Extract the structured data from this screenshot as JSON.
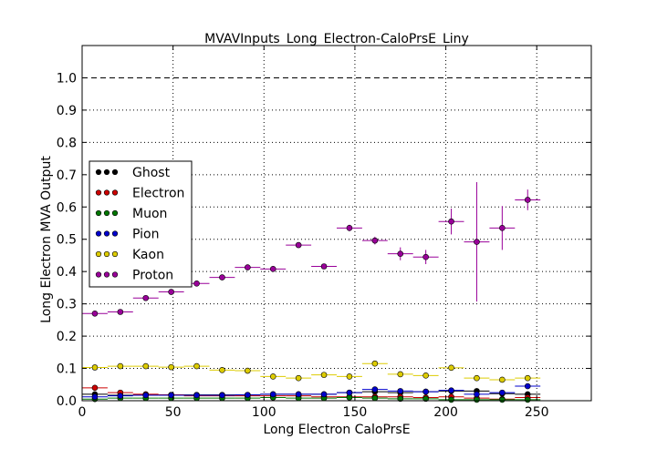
{
  "chart_data": {
    "type": "scatter",
    "title": "MVAVInputs_Long_Electron-CaloPrsE_Liny",
    "xlabel": "Long Electron CaloPrsE",
    "ylabel": "Long Electron MVA Output",
    "xlim": [
      0,
      280
    ],
    "ylim": [
      0,
      1.1
    ],
    "xticks": [
      0,
      50,
      100,
      150,
      200,
      250
    ],
    "xtick_labels": [
      "0",
      "50",
      "100",
      "150",
      "200",
      "250"
    ],
    "yticks": [
      0.0,
      0.1,
      0.2,
      0.3,
      0.4,
      0.5,
      0.6,
      0.7,
      0.8,
      0.9,
      1.0
    ],
    "ytick_labels": [
      "0.0",
      "0.1",
      "0.2",
      "0.3",
      "0.4",
      "0.5",
      "0.6",
      "0.7",
      "0.8",
      "0.9",
      "1.0"
    ],
    "grid": true,
    "reference_line": 1.0,
    "legend_position": "center-left",
    "bin_half_width": 7,
    "x": [
      7,
      21,
      35,
      49,
      63,
      77,
      91,
      105,
      119,
      133,
      147,
      161,
      175,
      189,
      203,
      217,
      231,
      245
    ],
    "series": [
      {
        "name": "Ghost",
        "color": "#000000",
        "values": [
          0.02,
          0.017,
          0.018,
          0.018,
          0.018,
          0.018,
          0.018,
          0.02,
          0.02,
          0.02,
          0.025,
          0.028,
          0.025,
          0.028,
          0.03,
          0.03,
          0.022,
          0.02
        ],
        "errors": [
          0.002,
          0.002,
          0.002,
          0.002,
          0.002,
          0.002,
          0.002,
          0.002,
          0.002,
          0.002,
          0.003,
          0.003,
          0.003,
          0.003,
          0.004,
          0.004,
          0.004,
          0.004
        ]
      },
      {
        "name": "Electron",
        "color": "#cc0000",
        "values": [
          0.04,
          0.025,
          0.02,
          0.018,
          0.015,
          0.015,
          0.015,
          0.015,
          0.015,
          0.012,
          0.012,
          0.012,
          0.012,
          0.01,
          0.012,
          0.008,
          0.005,
          0.01
        ],
        "errors": [
          0.002,
          0.002,
          0.002,
          0.002,
          0.002,
          0.002,
          0.002,
          0.002,
          0.002,
          0.002,
          0.002,
          0.002,
          0.002,
          0.002,
          0.002,
          0.002,
          0.002,
          0.002
        ]
      },
      {
        "name": "Muon",
        "color": "#007700",
        "values": [
          0.005,
          0.008,
          0.008,
          0.008,
          0.008,
          0.008,
          0.008,
          0.01,
          0.008,
          0.008,
          0.01,
          0.008,
          0.006,
          0.006,
          0.003,
          0.003,
          0.003,
          0.003
        ],
        "errors": [
          0.002,
          0.002,
          0.002,
          0.002,
          0.002,
          0.002,
          0.002,
          0.002,
          0.002,
          0.002,
          0.003,
          0.003,
          0.003,
          0.003,
          0.003,
          0.003,
          0.003,
          0.003
        ]
      },
      {
        "name": "Pion",
        "color": "#0000cc",
        "values": [
          0.012,
          0.015,
          0.017,
          0.017,
          0.017,
          0.017,
          0.018,
          0.02,
          0.02,
          0.02,
          0.025,
          0.035,
          0.03,
          0.028,
          0.032,
          0.02,
          0.025,
          0.045
        ],
        "errors": [
          0.002,
          0.002,
          0.002,
          0.002,
          0.002,
          0.002,
          0.002,
          0.002,
          0.002,
          0.002,
          0.003,
          0.003,
          0.003,
          0.003,
          0.004,
          0.004,
          0.004,
          0.004
        ]
      },
      {
        "name": "Kaon",
        "color": "#ddcc00",
        "values": [
          0.103,
          0.107,
          0.107,
          0.104,
          0.107,
          0.095,
          0.093,
          0.075,
          0.07,
          0.08,
          0.075,
          0.115,
          0.082,
          0.078,
          0.102,
          0.07,
          0.065,
          0.07
        ],
        "errors": [
          0.003,
          0.003,
          0.003,
          0.003,
          0.003,
          0.003,
          0.004,
          0.004,
          0.004,
          0.004,
          0.005,
          0.005,
          0.005,
          0.005,
          0.006,
          0.006,
          0.006,
          0.006
        ]
      },
      {
        "name": "Proton",
        "color": "#990099",
        "values": [
          0.27,
          0.275,
          0.318,
          0.337,
          0.363,
          0.382,
          0.413,
          0.408,
          0.482,
          0.416,
          0.535,
          0.496,
          0.455,
          0.445,
          0.555,
          0.492,
          0.535,
          0.622
        ],
        "errors": [
          0.004,
          0.004,
          0.004,
          0.004,
          0.005,
          0.005,
          0.006,
          0.006,
          0.007,
          0.007,
          0.01,
          0.012,
          0.02,
          0.022,
          0.04,
          0.185,
          0.068,
          0.032
        ]
      }
    ]
  }
}
